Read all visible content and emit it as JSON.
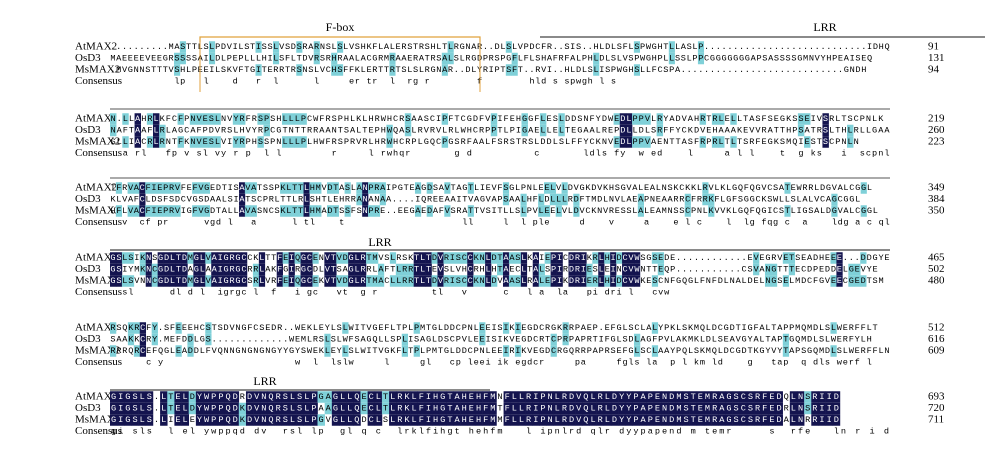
{
  "annotations": [
    {
      "label": "F-box"
    },
    {
      "label": "LRR"
    },
    {
      "label": "LRR"
    },
    {
      "label": "LRR"
    }
  ],
  "blocks": [
    {
      "rows": [
        {
          "name": "AtMAX2",
          "sequence": "..........MASTTLSLPDVILSTISSLVSDSRARNSLSLVSHKFLALERSTRSHLTLRGNAR..DLSLVPDCFR..SIS..HLDLSFLSPWGHTLLASLP............................IDHQ",
          "end": 91
        },
        {
          "name": "OsD3",
          "sequence": "MAEEEEVEEGRSSSSAILDLPEPLLLHILSFLTDVRSRHRAALACGRMRAAERATRSALSLRGDPRSPGFLFLSHAFRFALPHLDLSLVSPWGHPLLSSLPPCGGGGGGGAPSASSSSGMNVYHPEAISEQ",
          "end": 131
        },
        {
          "name": "MsMAX2",
          "sequence": ".MVGNNSTTTVSHLPEEILSKVFTGITERRTRSNSLVCHSFFKLERTTRTSLSLRGNAR..DLYRIPTSFT..RVI..HLDLSLISPWGHSLLFCSPA............................GNDH",
          "end": 94
        }
      ],
      "consensus_label": "Consensus",
      "consensus": "           lp   l    d   r  l      l     er tr  l  rg r        f        hld s spwgh l s                            "
    },
    {
      "rows": [
        {
          "name": "AtMAX2",
          "sequence": "N.LLAHRLKFCFPNVESLNVYRFRSPSHLLLPCWFRSPHLKLHRWHCRSAASCIPFTCGDFVPIFEHGGFLESLDDSNFYDWEDLPPVLRYADVAHRTRLELLTASFSEGKSSEIVSRLTSCPNLK",
          "end": 219
        },
        {
          "name": "OsD3",
          "sequence": "NAFTAAFLRLAGCAFPDVRSLHVYRPCGTNTTRRAANTSALTEPHWQASLRVRVLRLWHCRPPTLPIGAELLELTEGAALREPDLLDLSRFFYCKDVEHAAAKEVVRATTHPSATRSLTHLRLLGAA",
          "end": 260
        },
        {
          "name": "MsMAX2",
          "sequence": "SLLIACRLRNTFKNVESLVIYRPHSSPNLLLPLHWFRSPRVRLHRWHCRPLGQCPGSRFAALFSRSTRSLDDLSLFFYCKNVEDLPPVAENTTASFRPRLTLTSRFEGKSMQIESTSCPNLN",
          "end": 223
        }
      ],
      "consensus_label": "Consensus",
      "consensus": "  a rl   fp v sl vy r p  l l        r     l rwhqr       g d          c       ldls fy  w ed    l     a l l    t  g ks   i  scpnl"
    },
    {
      "rows": [
        {
          "name": "AtMAX2",
          "sequence": "TFRVACFIEPRVFEFVGEDTISAVATSSPKLTTLHMVDTASLANPRAIPGTEAGDSAVTAGTLIEVFSGLPNLEELVLDVGKDVKHSGVALEALNSKCKKLRVLKLGQFQGVCSATEWRRLDGVALCGGL",
          "end": 349
        },
        {
          "name": "OsD3",
          "sequence": "KLVAFCLDSFSDCVGSDAALSIATSCPRLTTLRLSHTLEHRRANANAA....IQREEAAITVAGVAPSAALHFLDLLLRDFTMDLNVLAEAPNEAARRCFRRKFLGFSGGCKSWLLSLALVCAGCGGL",
          "end": 384
        },
        {
          "name": "MsMAX2",
          "sequence": "HFLVACFIEPRVIGFVGDTALLAVASNCSKLTTLHMADTSSFSNPRE..EEGAEDAFVSRATTVSITLLSLPVLEELVLDVCKNVRESSLALEAMNSSCPNLKVVKLGQFQGICSTLIGSALDGVALCGGL",
          "end": 350
        }
      ],
      "consensus_label": "Consensus",
      "consensus": "  v  cf pr      vgd l   a      l tl    t                    ll     l  l ple     d    v     a    e l c    l  lg fqg c  a    ldg a c ql"
    },
    {
      "rows": [
        {
          "name": "AtMAX2",
          "sequence": "GSLSIKNSGDLTDMGLVAIGRGCCKLTTFEIQGCENVTVDGLRTMVSLRSKTLTDVRISCCKNLDTAASLKAIEPICDRIKRLHIDCVWSGSEDE............EVEGRVETSEADHEEE...DDGYE",
          "end": 465
        },
        {
          "name": "OsD3",
          "sequence": "GSIYMKNCGDLTDAGLAAIGRGCRRLAKFGIRGCDLVTSAGLRRLAFTLRRTLTEVSLVHCRHLHTAECLTALSPIRDRIESLEINCVWNTTEQP...........CSVANGTTTECDPEDDELGEVYE",
          "end": 502
        },
        {
          "name": "MsMAX2",
          "sequence": "GSLSVNNCGDLTDMGLVAIGRGCSRLVRFEIQGCEKVTVDGLRTMACLLRRTLTDVRISCCKNLDVAASLRALEPIKDRIERLHIDCVWKESCNFGQGLFNFDLNALDELNGSELMDCFGVEECGEDTSM",
          "end": 480
        }
      ],
      "consensus_label": "Consensus",
      "consensus": "  sl      dl d l  igrgc l  f   i gc   vt  g r         tl   v      c   l a  la   pi dri l   cvw"
    },
    {
      "rows": [
        {
          "name": "AtMAX2",
          "sequence": "RSQKRCFY.SFEEEHCSTSDVNGFCSEDR..WEKLEYLSLWITVGEFLTPLPMTGLDDCPNLEEISIKIEGDCRGKRRPAEP.EFGLSCLALYPKLSKMQLDCGDTIGFALTAPPMQMDLSLWERFFLT",
          "end": 512
        },
        {
          "name": "OsD3",
          "sequence": "SAAKKCRY.MEFDDLGS.............WEMLRSLSLWFSAGQLLSPLISAGLDSCPVLEEISIKVEGDCRTCPRPAPRTIFGLSDLAGFPVLAKMKLDLSEAVGYALTAPTGQMDLSLWERFYLH",
          "end": 616
        },
        {
          "name": "MsMAX2",
          "sequence": "RRRQRCEFQGLEADDLFVQNNGNGNGNGYYGYSWEKLEYLSLWITVGKFLTPLPMTGLDDCPNLEEIRIKVEGDCRGQRRPAPRSEFGLSCLAAYPQLSKMQLDCGDTKGYVYTAPSGQMDLSLWERFFLN",
          "end": 609
        }
      ],
      "consensus_label": "Consensus",
      "consensus": "      c y                      w  l  lslw     l     gl   cp leei ik egdcr     pa     fgls la  p l km ld    g   tap  q dls werf l"
    },
    {
      "rows": [
        {
          "name": "AtMAX2",
          "sequence": "GIGSLS.LTELDYWPPQDRDVNQRSLSLPGAGLLQECLTLRKLFIHGTAHEHFMNFLLRIPNLRDVQLRLDYYPAPENDMSTEMRAGSCSRFEDQLNSRIID",
          "end": 693
        },
        {
          "name": "OsD3",
          "sequence": "GIGSLS.LTELDYWPPQDKDVNQRSLSLPAAGLLQECLTLRKLFIHGTAHEHFMTFLLRIPNLRDVQLRLDYYPAPENDMSTEMRAGSCSRFEDRLNSRIID",
          "end": 720
        },
        {
          "name": "MsMAX2",
          "sequence": "GIGSLS.LIELEYWPPQDKDVNQRSLSLPGVGLLQDCLSLRKLFIHGTAHEHFMMFLLRIPNLRDVQLRLDYYPAPENDMSTEMRAGSCSRFEDALNRRIID",
          "end": 711
        }
      ],
      "consensus_label": "Consensus",
      "consensus": "gi sls  l el ywppqd dv  rsl lp  gl q c  lrklfihgt hehfm   l ipnlrd qlr dyypapend m temr     s  rfe   ln r i d"
    }
  ]
}
